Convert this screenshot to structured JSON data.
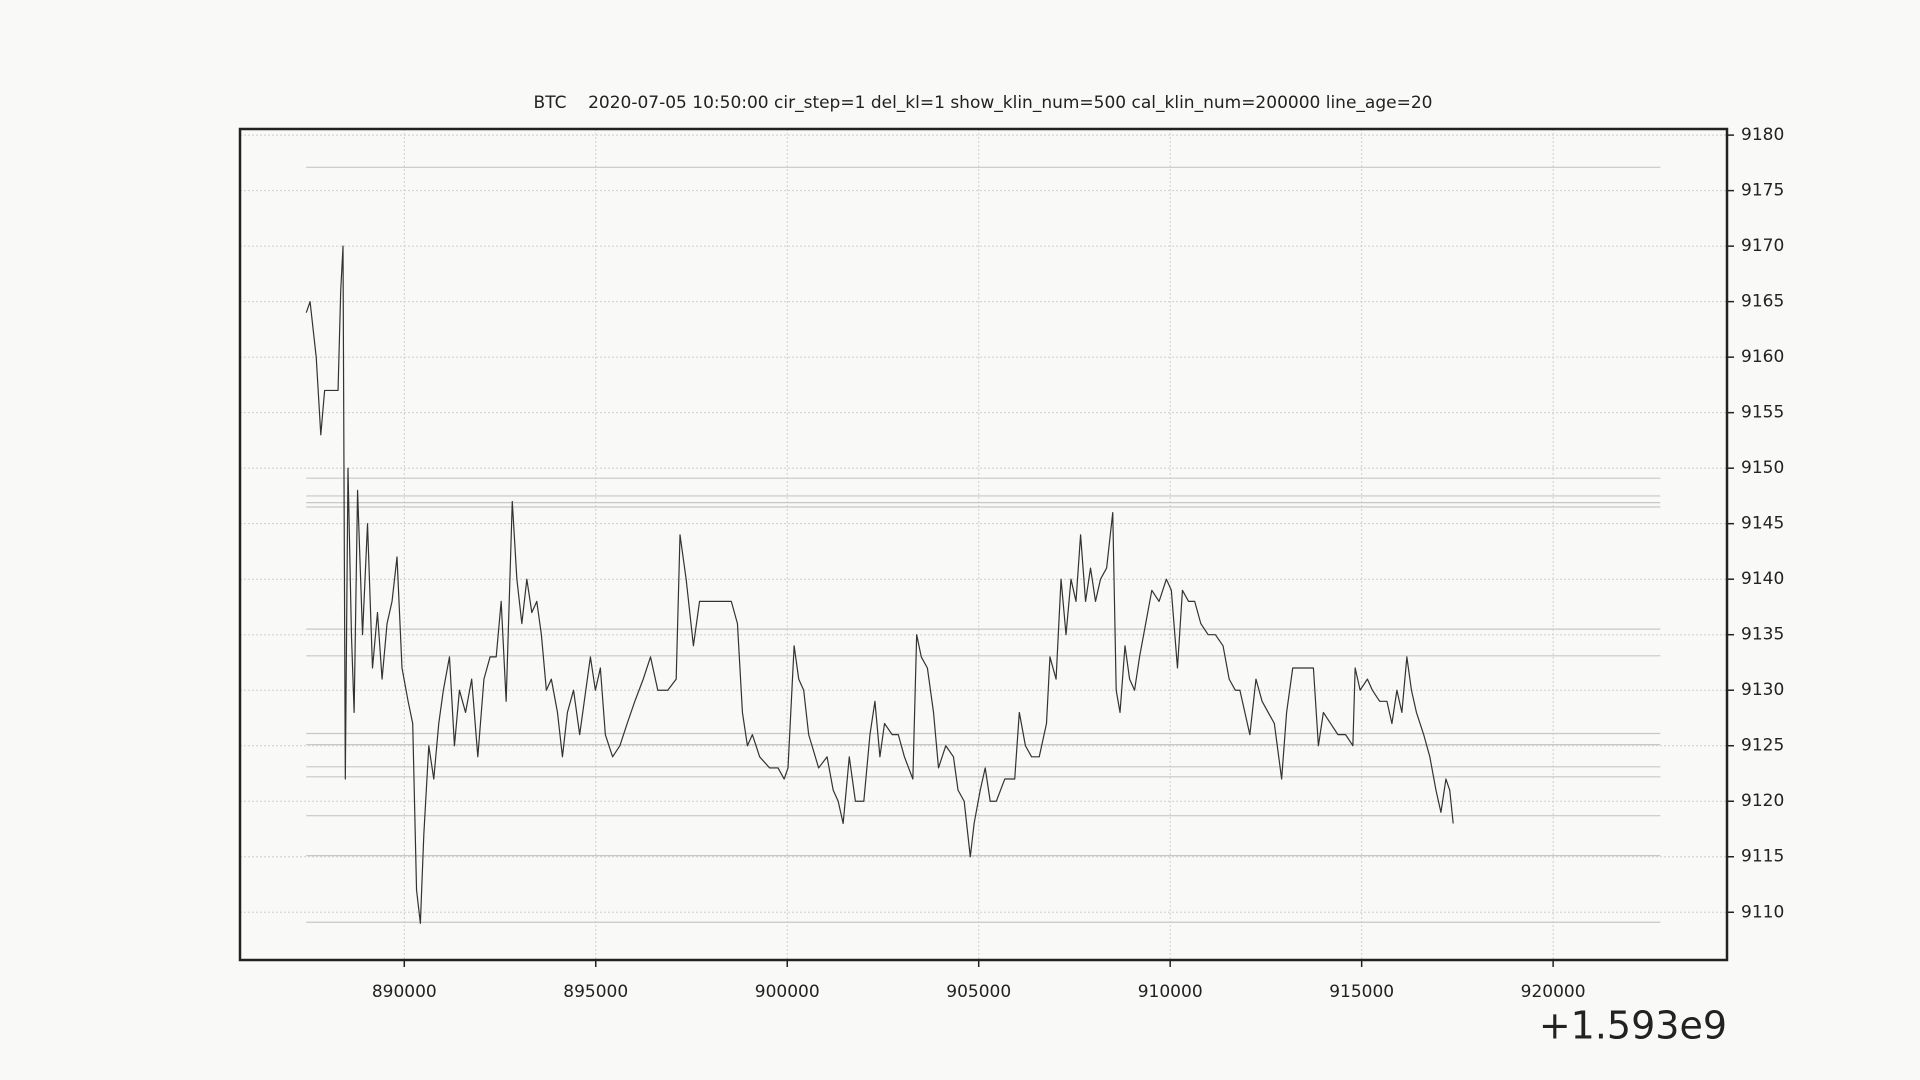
{
  "chart_data": {
    "type": "line",
    "title": "BTC    2020-07-05 10:50:00 cir_step=1 del_kl=1 show_klin_num=500 cal_klin_num=200000 line_age=20",
    "x_offset_label": "+1.593e9",
    "x": [
      887440,
      887540,
      887700,
      887820,
      887920,
      888080,
      888270,
      888340,
      888400,
      888460,
      888530,
      888620,
      888690,
      888780,
      888910,
      889040,
      889170,
      889300,
      889420,
      889550,
      889680,
      889810,
      889940,
      890100,
      890220,
      890320,
      890420,
      890510,
      890640,
      890770,
      890900,
      891020,
      891180,
      891310,
      891440,
      891600,
      891760,
      891920,
      892080,
      892240,
      892400,
      892530,
      892660,
      892820,
      892940,
      893070,
      893200,
      893330,
      893460,
      893580,
      893710,
      893840,
      894000,
      894130,
      894260,
      894420,
      894580,
      894740,
      894860,
      894990,
      895120,
      895250,
      895440,
      895630,
      895820,
      896020,
      896240,
      896430,
      896620,
      896880,
      897100,
      897200,
      897360,
      897550,
      897710,
      897870,
      898060,
      898320,
      898540,
      898700,
      898830,
      898960,
      899090,
      899280,
      899540,
      899760,
      899920,
      900020,
      900180,
      900300,
      900430,
      900560,
      900820,
      901040,
      901200,
      901330,
      901460,
      901620,
      901780,
      902000,
      902160,
      902290,
      902420,
      902540,
      902740,
      902900,
      903060,
      903280,
      903380,
      903500,
      903660,
      903820,
      903950,
      904140,
      904340,
      904460,
      904620,
      904780,
      904880,
      905040,
      905170,
      905300,
      905460,
      905680,
      905940,
      906060,
      906220,
      906380,
      906580,
      906770,
      906860,
      907020,
      907150,
      907280,
      907410,
      907540,
      907660,
      907790,
      907920,
      908050,
      908180,
      908340,
      908500,
      908590,
      908690,
      908820,
      908940,
      909070,
      909200,
      909360,
      909520,
      909710,
      909900,
      910030,
      910190,
      910320,
      910480,
      910640,
      910800,
      910990,
      911180,
      911380,
      911540,
      911700,
      911820,
      911950,
      912080,
      912240,
      912400,
      912560,
      912720,
      912910,
      913040,
      913200,
      913420,
      913620,
      913740,
      913870,
      914000,
      914190,
      914380,
      914580,
      914770,
      914830,
      914960,
      915150,
      915280,
      915470,
      915660,
      915790,
      915920,
      916050,
      916180,
      916300,
      916430,
      916620,
      916780,
      916940,
      917070,
      917200,
      917300,
      917390
    ],
    "series": [
      {
        "color": "#333333",
        "values": [
          9164,
          9165,
          9160,
          9153,
          9157,
          9157,
          9157,
          9166,
          9170,
          9122,
          9150,
          9135,
          9128,
          9148,
          9135,
          9145,
          9132,
          9137,
          9131,
          9136,
          9138,
          9142,
          9132,
          9129,
          9127,
          9112,
          9109,
          9117,
          9125,
          9122,
          9127,
          9130,
          9133,
          9125,
          9130,
          9128,
          9131,
          9124,
          9131,
          9133,
          9133,
          9138,
          9129,
          9147,
          9140,
          9136,
          9140,
          9137,
          9138,
          9135,
          9130,
          9131,
          9128,
          9124,
          9128,
          9130,
          9126,
          9130,
          9133,
          9130,
          9132,
          9126,
          9124,
          9125,
          9127,
          9129,
          9131,
          9133,
          9130,
          9130,
          9131,
          9144,
          9140,
          9134,
          9138,
          9138,
          9138,
          9138,
          9138,
          9136,
          9128,
          9125,
          9126,
          9124,
          9123,
          9123,
          9122,
          9123,
          9134,
          9131,
          9130,
          9126,
          9123,
          9124,
          9121,
          9120,
          9118,
          9124,
          9120,
          9120,
          9126,
          9129,
          9124,
          9127,
          9126,
          9126,
          9124,
          9122,
          9135,
          9133,
          9132,
          9128,
          9123,
          9125,
          9124,
          9121,
          9120,
          9115,
          9118,
          9121,
          9123,
          9120,
          9120,
          9122,
          9122,
          9128,
          9125,
          9124,
          9124,
          9127,
          9133,
          9131,
          9140,
          9135,
          9140,
          9138,
          9144,
          9138,
          9141,
          9138,
          9140,
          9141,
          9146,
          9130,
          9128,
          9134,
          9131,
          9130,
          9133,
          9136,
          9139,
          9138,
          9140,
          9139,
          9132,
          9139,
          9138,
          9138,
          9136,
          9135,
          9135,
          9134,
          9131,
          9130,
          9130,
          9128,
          9126,
          9131,
          9129,
          9128,
          9127,
          9122,
          9128,
          9132,
          9132,
          9132,
          9132,
          9125,
          9128,
          9127,
          9126,
          9126,
          9125,
          9132,
          9130,
          9131,
          9130,
          9129,
          9129,
          9127,
          9130,
          9128,
          9133,
          9130,
          9128,
          9126,
          9124,
          9121,
          9119,
          9122,
          9121,
          9118
        ]
      }
    ],
    "levels": [
      9177.1,
      9149.1,
      9147.5,
      9146.9,
      9146.5,
      9135.5,
      9133.1,
      9126.1,
      9125.1,
      9123.1,
      9122.2,
      9118.7,
      9115.1,
      9109.1
    ],
    "level_span": [
      887440,
      922800
    ],
    "level_color": "#c8c8c8",
    "xlim": [
      885710,
      924540
    ],
    "ylim": [
      9105.7,
      9180.55
    ],
    "xticks": [
      890000,
      895000,
      900000,
      905000,
      910000,
      915000,
      920000
    ],
    "yticks": [
      9110,
      9115,
      9120,
      9125,
      9130,
      9135,
      9140,
      9145,
      9150,
      9155,
      9160,
      9165,
      9170,
      9175,
      9180
    ],
    "grid": true
  }
}
